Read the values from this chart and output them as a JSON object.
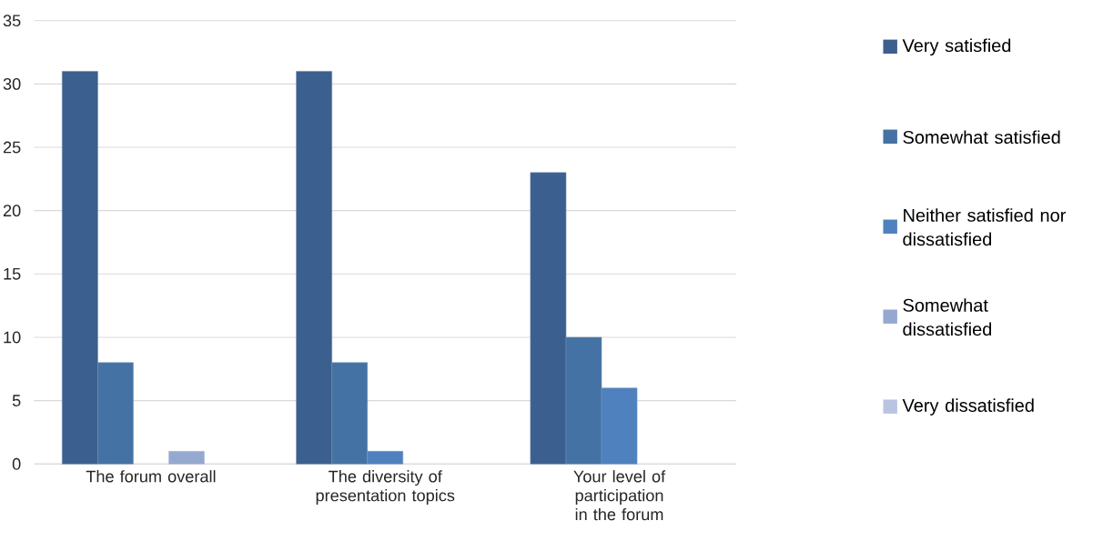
{
  "chart_data": {
    "type": "bar",
    "categories": [
      "The forum overall",
      "The diversity of presentation topics",
      "Your level of participation in the forum"
    ],
    "series": [
      {
        "name": "Very satisfied",
        "color": "#3b5f8e",
        "values": [
          31,
          31,
          23
        ]
      },
      {
        "name": "Somewhat satisfied",
        "color": "#4472a4",
        "values": [
          8,
          8,
          10
        ]
      },
      {
        "name": "Neither satisfied nor dissatisfied",
        "color": "#4e81bd",
        "values": [
          null,
          1,
          6
        ]
      },
      {
        "name": "Somewhat dissatisfied",
        "color": "#95a9d0",
        "values": [
          1,
          null,
          null
        ]
      },
      {
        "name": "Very dissatisfied",
        "color": "#b9c5e0",
        "values": [
          null,
          null,
          null
        ]
      }
    ],
    "ylim": [
      0,
      35
    ],
    "yticks": [
      0,
      5,
      10,
      15,
      20,
      25,
      30,
      35
    ],
    "grid": "y",
    "legend": "right"
  }
}
